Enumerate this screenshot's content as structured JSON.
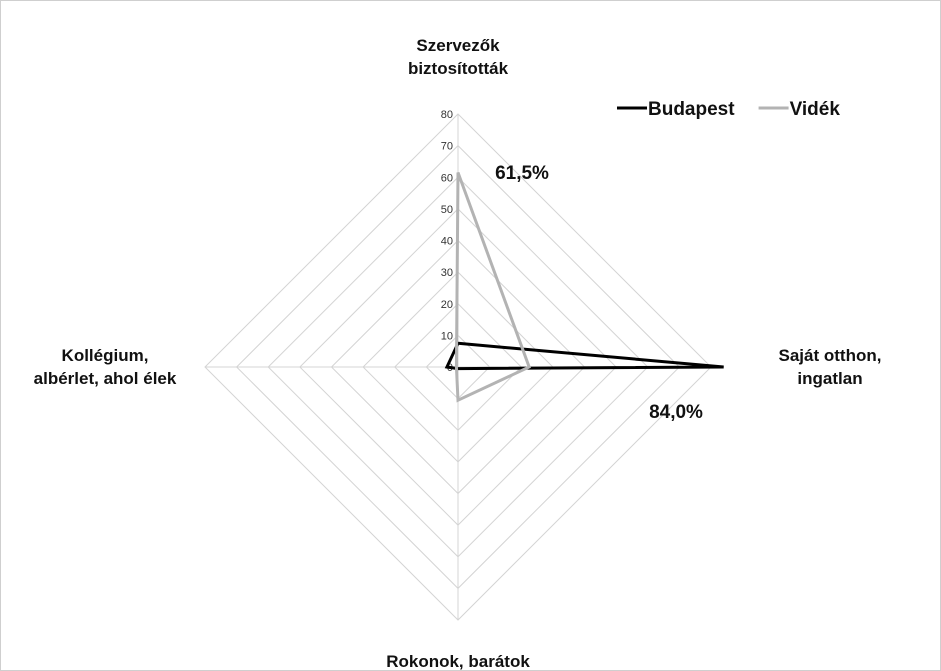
{
  "chart_data": {
    "type": "radar",
    "categories": [
      "Szervezők biztosították",
      "Saját otthon, ingatlan",
      "Rokonok, barátok",
      "Kollégium, albérlet, ahol élek"
    ],
    "category_lines": [
      [
        "Szervezők",
        "biztosították"
      ],
      [
        "Saját otthon,",
        "ingatlan"
      ],
      [
        "Rokonok, barátok"
      ],
      [
        "Kollégium,",
        "albérlet, ahol élek"
      ]
    ],
    "series": [
      {
        "name": "Budapest",
        "values": [
          7.5,
          84.0,
          0.5,
          3.5
        ],
        "color": "#000000"
      },
      {
        "name": "Vidék",
        "values": [
          61.5,
          22.5,
          10.5,
          0.5
        ],
        "color": "#b3b3b3"
      }
    ],
    "axis_min": 0,
    "axis_max": 80,
    "axis_step": 10,
    "tick_labels": [
      "0",
      "10",
      "20",
      "30",
      "40",
      "50",
      "60",
      "70",
      "80"
    ],
    "grid": true,
    "gridline_color": "#d4d4d4",
    "legend_position": "top-right",
    "annotations": [
      {
        "text": "61,5%",
        "series": "Vidék",
        "category": "Szervezők biztosították"
      },
      {
        "text": "84,0%",
        "series": "Budapest",
        "category": "Saját otthon, ingatlan"
      }
    ]
  }
}
